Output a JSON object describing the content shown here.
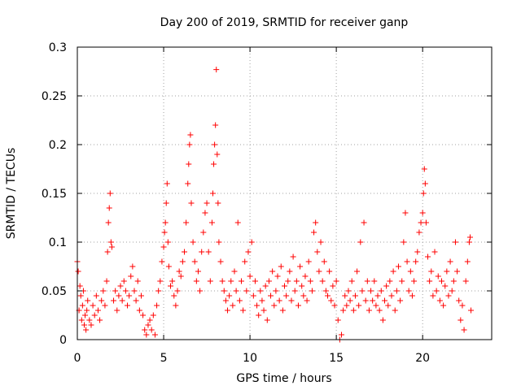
{
  "chart_data": {
    "type": "scatter",
    "title": "Day 200 of 2019, SRMTID for receiver ganp",
    "xlabel": "GPS time / hours",
    "ylabel": "SRMTID / TECUs",
    "xlim": [
      0,
      24
    ],
    "ylim": [
      0,
      0.3
    ],
    "x_ticks": [
      0,
      5,
      10,
      15,
      20
    ],
    "x_tick_labels": [
      "0",
      "5",
      "10",
      "15",
      "20"
    ],
    "y_ticks": [
      0,
      0.05,
      0.1,
      0.15,
      0.2,
      0.25,
      0.3
    ],
    "y_tick_labels": [
      "0",
      "0.05",
      "0.1",
      "0.15",
      "0.2",
      "0.25",
      "0.3"
    ],
    "grid": true,
    "marker": "+",
    "series": [
      {
        "name": "SRMTID",
        "color": "#ff0000",
        "points": [
          [
            0.0,
            0.08
          ],
          [
            0.05,
            0.07
          ],
          [
            0.1,
            0.03
          ],
          [
            0.15,
            0.055
          ],
          [
            0.2,
            0.045
          ],
          [
            0.25,
            0.02
          ],
          [
            0.3,
            0.035
          ],
          [
            0.35,
            0.05
          ],
          [
            0.4,
            0.015
          ],
          [
            0.45,
            0.025
          ],
          [
            0.5,
            0.01
          ],
          [
            0.55,
            0.03
          ],
          [
            0.6,
            0.04
          ],
          [
            0.7,
            0.02
          ],
          [
            0.8,
            0.015
          ],
          [
            0.9,
            0.035
          ],
          [
            1.0,
            0.025
          ],
          [
            1.1,
            0.045
          ],
          [
            1.2,
            0.03
          ],
          [
            1.3,
            0.02
          ],
          [
            1.4,
            0.04
          ],
          [
            1.5,
            0.05
          ],
          [
            1.6,
            0.035
          ],
          [
            1.7,
            0.06
          ],
          [
            1.75,
            0.09
          ],
          [
            1.8,
            0.12
          ],
          [
            1.85,
            0.135
          ],
          [
            1.9,
            0.15
          ],
          [
            1.95,
            0.1
          ],
          [
            2.0,
            0.095
          ],
          [
            2.1,
            0.04
          ],
          [
            2.2,
            0.05
          ],
          [
            2.3,
            0.03
          ],
          [
            2.4,
            0.045
          ],
          [
            2.5,
            0.055
          ],
          [
            2.6,
            0.04
          ],
          [
            2.7,
            0.06
          ],
          [
            2.8,
            0.05
          ],
          [
            2.9,
            0.035
          ],
          [
            3.0,
            0.045
          ],
          [
            3.1,
            0.065
          ],
          [
            3.2,
            0.075
          ],
          [
            3.3,
            0.05
          ],
          [
            3.4,
            0.04
          ],
          [
            3.5,
            0.06
          ],
          [
            3.6,
            0.03
          ],
          [
            3.7,
            0.045
          ],
          [
            3.8,
            0.025
          ],
          [
            3.9,
            0.01
          ],
          [
            4.0,
            0.005
          ],
          [
            4.1,
            0.015
          ],
          [
            4.2,
            0.02
          ],
          [
            4.3,
            0.01
          ],
          [
            4.4,
            0.025
          ],
          [
            4.5,
            0.005
          ],
          [
            4.6,
            0.035
          ],
          [
            4.7,
            0.05
          ],
          [
            4.8,
            0.06
          ],
          [
            4.9,
            0.08
          ],
          [
            5.0,
            0.095
          ],
          [
            5.05,
            0.11
          ],
          [
            5.1,
            0.12
          ],
          [
            5.15,
            0.14
          ],
          [
            5.2,
            0.16
          ],
          [
            5.25,
            0.1
          ],
          [
            5.3,
            0.075
          ],
          [
            5.4,
            0.055
          ],
          [
            5.5,
            0.06
          ],
          [
            5.6,
            0.045
          ],
          [
            5.7,
            0.035
          ],
          [
            5.8,
            0.05
          ],
          [
            5.9,
            0.07
          ],
          [
            6.0,
            0.065
          ],
          [
            6.1,
            0.08
          ],
          [
            6.2,
            0.09
          ],
          [
            6.3,
            0.12
          ],
          [
            6.4,
            0.16
          ],
          [
            6.45,
            0.18
          ],
          [
            6.5,
            0.2
          ],
          [
            6.55,
            0.21
          ],
          [
            6.6,
            0.14
          ],
          [
            6.7,
            0.1
          ],
          [
            6.8,
            0.08
          ],
          [
            6.9,
            0.06
          ],
          [
            7.0,
            0.07
          ],
          [
            7.1,
            0.05
          ],
          [
            7.2,
            0.09
          ],
          [
            7.3,
            0.11
          ],
          [
            7.4,
            0.13
          ],
          [
            7.5,
            0.14
          ],
          [
            7.6,
            0.09
          ],
          [
            7.7,
            0.06
          ],
          [
            7.8,
            0.12
          ],
          [
            7.85,
            0.15
          ],
          [
            7.9,
            0.18
          ],
          [
            7.95,
            0.2
          ],
          [
            8.0,
            0.22
          ],
          [
            8.05,
            0.277
          ],
          [
            8.1,
            0.19
          ],
          [
            8.15,
            0.14
          ],
          [
            8.2,
            0.1
          ],
          [
            8.3,
            0.08
          ],
          [
            8.4,
            0.06
          ],
          [
            8.5,
            0.05
          ],
          [
            8.6,
            0.04
          ],
          [
            8.7,
            0.03
          ],
          [
            8.8,
            0.045
          ],
          [
            8.9,
            0.06
          ],
          [
            9.0,
            0.035
          ],
          [
            9.1,
            0.07
          ],
          [
            9.2,
            0.05
          ],
          [
            9.3,
            0.12
          ],
          [
            9.4,
            0.04
          ],
          [
            9.5,
            0.06
          ],
          [
            9.6,
            0.03
          ],
          [
            9.7,
            0.08
          ],
          [
            9.8,
            0.05
          ],
          [
            9.9,
            0.09
          ],
          [
            10.0,
            0.065
          ],
          [
            10.1,
            0.1
          ],
          [
            10.2,
            0.045
          ],
          [
            10.3,
            0.06
          ],
          [
            10.4,
            0.035
          ],
          [
            10.5,
            0.025
          ],
          [
            10.6,
            0.05
          ],
          [
            10.7,
            0.04
          ],
          [
            10.8,
            0.03
          ],
          [
            10.9,
            0.055
          ],
          [
            11.0,
            0.02
          ],
          [
            11.1,
            0.06
          ],
          [
            11.2,
            0.045
          ],
          [
            11.3,
            0.07
          ],
          [
            11.4,
            0.035
          ],
          [
            11.5,
            0.05
          ],
          [
            11.6,
            0.065
          ],
          [
            11.7,
            0.04
          ],
          [
            11.8,
            0.075
          ],
          [
            11.9,
            0.03
          ],
          [
            12.0,
            0.055
          ],
          [
            12.1,
            0.045
          ],
          [
            12.2,
            0.06
          ],
          [
            12.3,
            0.07
          ],
          [
            12.4,
            0.04
          ],
          [
            12.5,
            0.085
          ],
          [
            12.6,
            0.05
          ],
          [
            12.7,
            0.06
          ],
          [
            12.8,
            0.035
          ],
          [
            12.9,
            0.075
          ],
          [
            13.0,
            0.055
          ],
          [
            13.1,
            0.045
          ],
          [
            13.2,
            0.065
          ],
          [
            13.3,
            0.04
          ],
          [
            13.4,
            0.08
          ],
          [
            13.5,
            0.06
          ],
          [
            13.6,
            0.05
          ],
          [
            13.7,
            0.11
          ],
          [
            13.8,
            0.12
          ],
          [
            13.9,
            0.09
          ],
          [
            14.0,
            0.07
          ],
          [
            14.1,
            0.1
          ],
          [
            14.2,
            0.06
          ],
          [
            14.3,
            0.08
          ],
          [
            14.4,
            0.05
          ],
          [
            14.5,
            0.045
          ],
          [
            14.6,
            0.07
          ],
          [
            14.7,
            0.04
          ],
          [
            14.8,
            0.055
          ],
          [
            14.9,
            0.035
          ],
          [
            15.0,
            0.06
          ],
          [
            15.1,
            0.02
          ],
          [
            15.2,
            0.0
          ],
          [
            15.3,
            0.005
          ],
          [
            15.4,
            0.03
          ],
          [
            15.5,
            0.045
          ],
          [
            15.6,
            0.035
          ],
          [
            15.7,
            0.05
          ],
          [
            15.8,
            0.04
          ],
          [
            15.9,
            0.06
          ],
          [
            16.0,
            0.03
          ],
          [
            16.1,
            0.045
          ],
          [
            16.2,
            0.07
          ],
          [
            16.3,
            0.035
          ],
          [
            16.4,
            0.1
          ],
          [
            16.5,
            0.05
          ],
          [
            16.6,
            0.12
          ],
          [
            16.7,
            0.04
          ],
          [
            16.8,
            0.06
          ],
          [
            16.9,
            0.03
          ],
          [
            17.0,
            0.05
          ],
          [
            17.1,
            0.04
          ],
          [
            17.2,
            0.06
          ],
          [
            17.3,
            0.035
          ],
          [
            17.4,
            0.045
          ],
          [
            17.5,
            0.03
          ],
          [
            17.6,
            0.05
          ],
          [
            17.7,
            0.02
          ],
          [
            17.8,
            0.04
          ],
          [
            17.9,
            0.055
          ],
          [
            18.0,
            0.035
          ],
          [
            18.1,
            0.06
          ],
          [
            18.2,
            0.045
          ],
          [
            18.3,
            0.07
          ],
          [
            18.4,
            0.03
          ],
          [
            18.5,
            0.05
          ],
          [
            18.6,
            0.075
          ],
          [
            18.7,
            0.04
          ],
          [
            18.8,
            0.06
          ],
          [
            18.9,
            0.1
          ],
          [
            19.0,
            0.13
          ],
          [
            19.1,
            0.08
          ],
          [
            19.2,
            0.05
          ],
          [
            19.3,
            0.07
          ],
          [
            19.4,
            0.045
          ],
          [
            19.5,
            0.06
          ],
          [
            19.6,
            0.08
          ],
          [
            19.7,
            0.09
          ],
          [
            19.8,
            0.11
          ],
          [
            19.9,
            0.12
          ],
          [
            20.0,
            0.13
          ],
          [
            20.05,
            0.15
          ],
          [
            20.1,
            0.175
          ],
          [
            20.15,
            0.16
          ],
          [
            20.2,
            0.12
          ],
          [
            20.3,
            0.085
          ],
          [
            20.4,
            0.06
          ],
          [
            20.5,
            0.07
          ],
          [
            20.6,
            0.045
          ],
          [
            20.7,
            0.09
          ],
          [
            20.8,
            0.05
          ],
          [
            20.9,
            0.065
          ],
          [
            21.0,
            0.04
          ],
          [
            21.1,
            0.06
          ],
          [
            21.2,
            0.035
          ],
          [
            21.3,
            0.055
          ],
          [
            21.4,
            0.07
          ],
          [
            21.5,
            0.045
          ],
          [
            21.6,
            0.08
          ],
          [
            21.7,
            0.05
          ],
          [
            21.8,
            0.06
          ],
          [
            21.9,
            0.1
          ],
          [
            22.0,
            0.07
          ],
          [
            22.1,
            0.04
          ],
          [
            22.2,
            0.02
          ],
          [
            22.3,
            0.035
          ],
          [
            22.4,
            0.01
          ],
          [
            22.5,
            0.06
          ],
          [
            22.6,
            0.08
          ],
          [
            22.7,
            0.1
          ],
          [
            22.75,
            0.105
          ],
          [
            22.8,
            0.03
          ]
        ]
      }
    ]
  }
}
